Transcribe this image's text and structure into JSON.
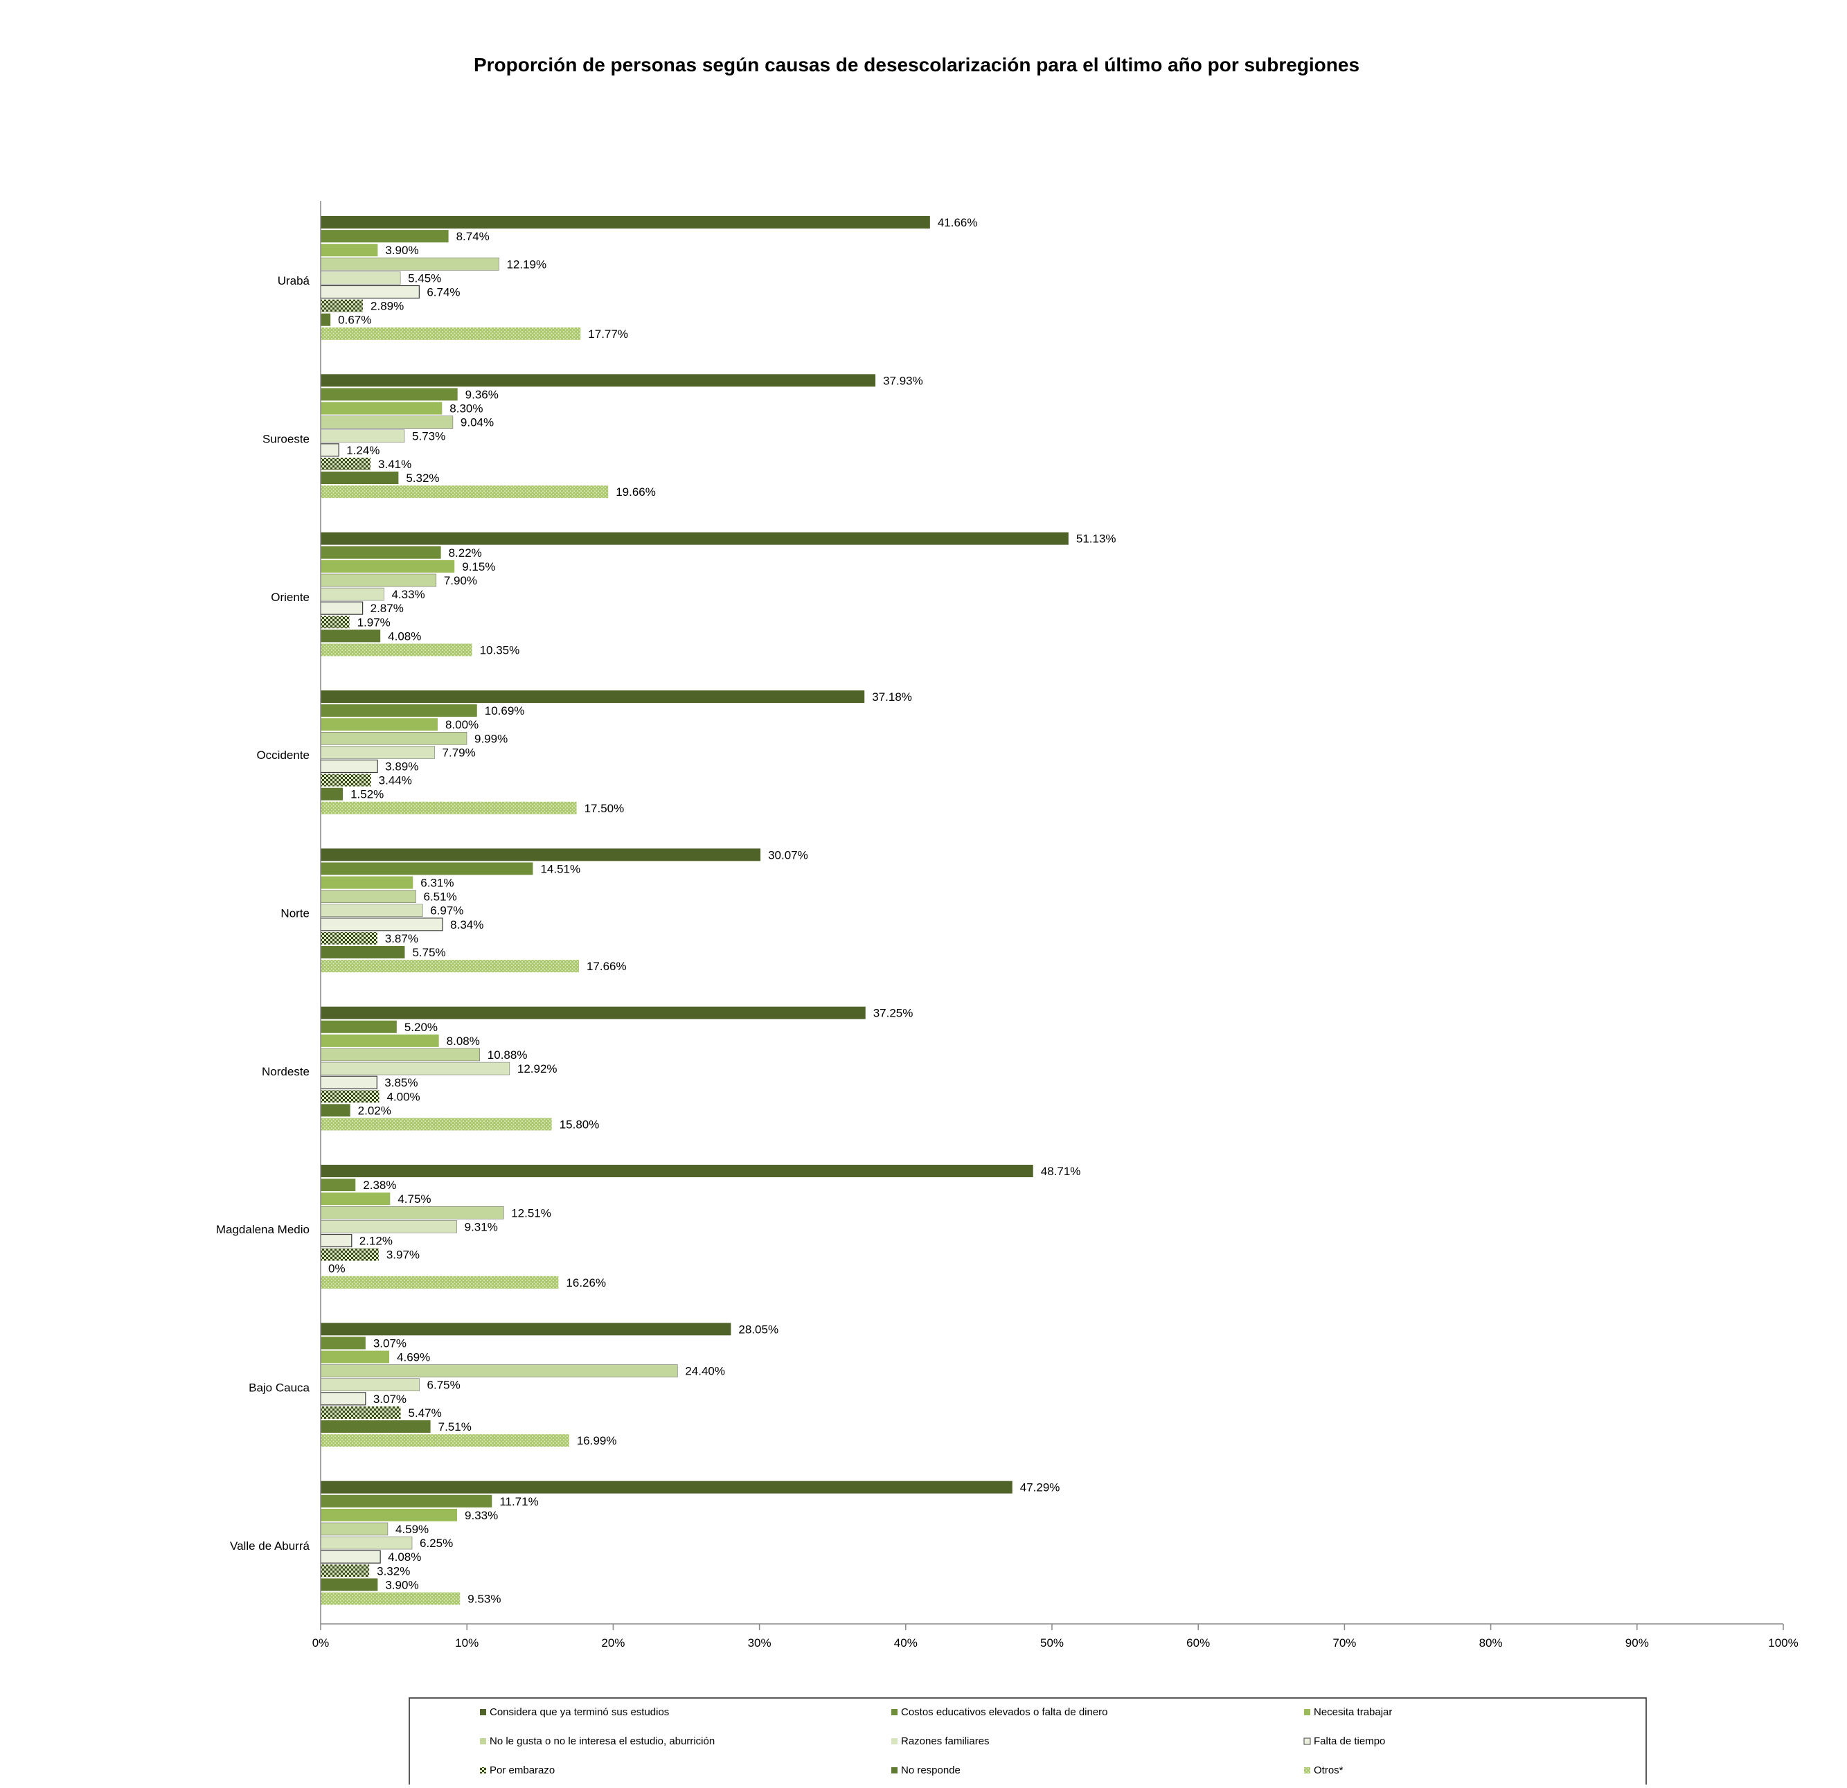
{
  "chart_data": {
    "type": "bar",
    "orientation": "horizontal",
    "title": "Proporción de personas según causas de desescolarización para el último año por subregiones",
    "xlabel": "",
    "ylabel": "",
    "xlim": [
      0,
      100
    ],
    "x_ticks": [
      "0%",
      "10%",
      "20%",
      "30%",
      "40%",
      "50%",
      "60%",
      "70%",
      "80%",
      "90%",
      "100%"
    ],
    "grid": false,
    "legend_position": "bottom",
    "categories": [
      "Urabá",
      "Suroeste",
      "Oriente",
      "Occidente",
      "Norte",
      "Nordeste",
      "Magdalena Medio",
      "Bajo Cauca",
      "Valle de Aburrá"
    ],
    "series": [
      {
        "name": "Considera que ya terminó sus estudios",
        "color": "#4f6228",
        "pattern": "solid",
        "values": [
          41.66,
          37.93,
          51.13,
          37.18,
          30.07,
          37.25,
          48.71,
          28.05,
          47.29
        ],
        "labels": [
          "41.66%",
          "37.93%",
          "51.13%",
          "37.18%",
          "30.07%",
          "37.25%",
          "48.71%",
          "28.05%",
          "47.29%"
        ]
      },
      {
        "name": "Costos educativos elevados  o falta de dinero",
        "color": "#6f8d39",
        "pattern": "solid",
        "values": [
          8.74,
          9.36,
          8.22,
          10.69,
          14.51,
          5.2,
          2.38,
          3.07,
          11.71
        ],
        "labels": [
          "8.74%",
          "9.36%",
          "8.22%",
          "10.69%",
          "14.51%",
          "5.20%",
          "2.38%",
          "3.07%",
          "11.71%"
        ]
      },
      {
        "name": "Necesita trabajar",
        "color": "#9bbb59",
        "pattern": "solid",
        "values": [
          3.9,
          8.3,
          9.15,
          8.0,
          6.31,
          8.08,
          4.75,
          4.69,
          9.33
        ],
        "labels": [
          "3.90%",
          "8.30%",
          "9.15%",
          "8.00%",
          "6.31%",
          "8.08%",
          "4.75%",
          "4.69%",
          "9.33%"
        ]
      },
      {
        "name": "No le gusta o no le interesa el estudio, aburrición",
        "color": "#c3d69b",
        "pattern": "solid",
        "values": [
          12.19,
          9.04,
          7.9,
          9.99,
          6.51,
          10.88,
          12.51,
          24.4,
          4.59
        ],
        "labels": [
          "12.19%",
          "9.04%",
          "7.90%",
          "9.99%",
          "6.51%",
          "10.88%",
          "12.51%",
          "24.40%",
          "4.59%"
        ]
      },
      {
        "name": "Razones  familiares",
        "color": "#d7e4bd",
        "pattern": "solid",
        "values": [
          5.45,
          5.73,
          4.33,
          7.79,
          6.97,
          12.92,
          9.31,
          6.75,
          6.25
        ],
        "labels": [
          "5.45%",
          "5.73%",
          "4.33%",
          "7.79%",
          "6.97%",
          "12.92%",
          "9.31%",
          "6.75%",
          "6.25%"
        ]
      },
      {
        "name": "Falta de tiempo",
        "color": "#ebf1de",
        "pattern": "solid",
        "values": [
          6.74,
          1.24,
          2.87,
          3.89,
          8.34,
          3.85,
          2.12,
          3.07,
          4.08
        ],
        "labels": [
          "6.74%",
          "1.24%",
          "2.87%",
          "3.89%",
          "8.34%",
          "3.85%",
          "2.12%",
          "3.07%",
          "4.08%"
        ]
      },
      {
        "name": "Por embarazo",
        "color": "#4f6228",
        "pattern": "checker",
        "values": [
          2.89,
          3.41,
          1.97,
          3.44,
          3.87,
          4.0,
          3.97,
          5.47,
          3.32
        ],
        "labels": [
          "2.89%",
          "3.41%",
          "1.97%",
          "3.44%",
          "3.87%",
          "4.00%",
          "3.97%",
          "5.47%",
          "3.32%"
        ]
      },
      {
        "name": "No responde",
        "color": "#5f7a30",
        "pattern": "solid",
        "values": [
          0.67,
          5.32,
          4.08,
          1.52,
          5.75,
          2.02,
          0,
          7.51,
          3.9
        ],
        "labels": [
          "0.67%",
          "5.32%",
          "4.08%",
          "1.52%",
          "5.75%",
          "2.02%",
          "0%",
          "7.51%",
          "3.90%"
        ]
      },
      {
        "name": "Otros*",
        "color": "#9bbb59",
        "pattern": "dots",
        "values": [
          17.77,
          19.66,
          10.35,
          17.5,
          17.66,
          15.8,
          16.26,
          16.99,
          9.53
        ],
        "labels": [
          "17.77%",
          "19.66%",
          "10.35%",
          "17.50%",
          "17.66%",
          "15.80%",
          "16.26%",
          "16.99%",
          "9.53%"
        ]
      }
    ]
  }
}
